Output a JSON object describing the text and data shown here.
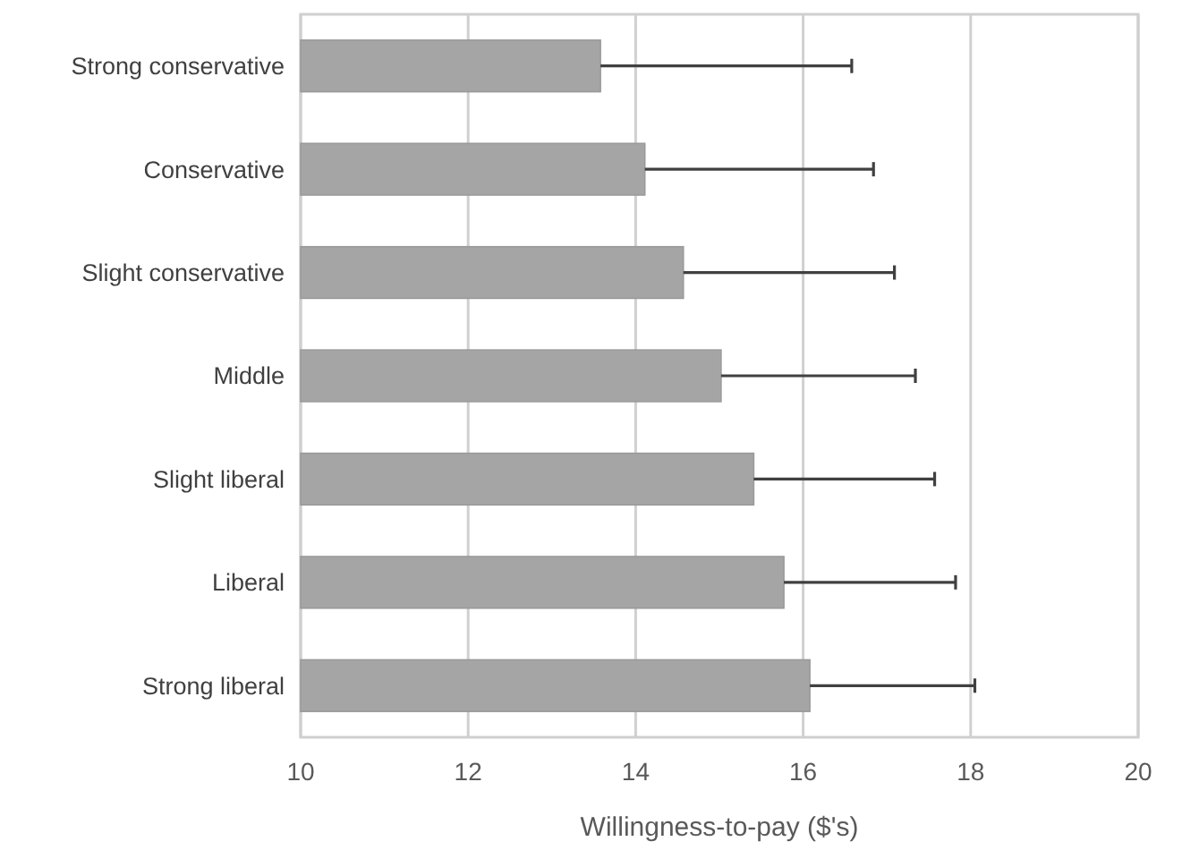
{
  "chart_data": {
    "type": "bar",
    "orientation": "horizontal",
    "xlabel": "Willingness-to-pay ($'s)",
    "categories": [
      "Strong conservative",
      "Conservative",
      "Slight conservative",
      "Middle",
      "Slight liberal",
      "Liberal",
      "Strong liberal"
    ],
    "values": [
      13.58,
      14.11,
      14.57,
      15.02,
      15.41,
      15.77,
      16.08
    ],
    "errors": [
      [
        13.58,
        16.58
      ],
      [
        14.11,
        16.84
      ],
      [
        14.57,
        17.09
      ],
      [
        15.02,
        17.34
      ],
      [
        15.41,
        17.57
      ],
      [
        15.77,
        17.82
      ],
      [
        16.08,
        18.05
      ]
    ],
    "color": "#a5a5a5",
    "xlim": [
      10,
      20
    ],
    "xticks": [
      10,
      12,
      14,
      16,
      18,
      20
    ],
    "grid": "x"
  }
}
